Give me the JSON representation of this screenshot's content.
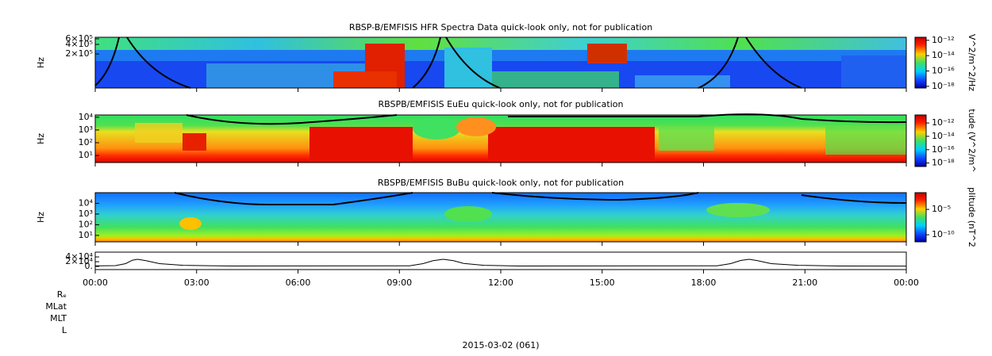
{
  "chart_data": [
    {
      "type": "spectrogram",
      "title": "RBSP-B/EMFISIS  HFR Spectra Data quick-look only, not for publication",
      "ylabel": "Hz",
      "ylog": true,
      "ylim": [
        17000,
        670000
      ],
      "yticks": [
        {
          "value": 200000,
          "label": "2×10⁵"
        },
        {
          "value": 400000,
          "label": "4×10⁵"
        },
        {
          "value": 600000,
          "label": "6×10⁵"
        }
      ],
      "colorbar": {
        "label": "V^2/m^2/Hz",
        "log": true,
        "lim": [
          6e-19,
          2.5e-12
        ],
        "ticks": [
          {
            "value": 1e-12,
            "label": "10⁻¹²"
          },
          {
            "value": 1e-14,
            "label": "10⁻¹⁴"
          },
          {
            "value": 1e-16,
            "label": "10⁻¹⁶"
          },
          {
            "value": 1e-18,
            "label": "10⁻¹⁸"
          }
        ]
      }
    },
    {
      "type": "spectrogram",
      "title": "RBSPB/EMFISIS  EuEu quick-look only, not for publication",
      "ylabel": "Hz",
      "ylog": true,
      "ylim": [
        2.8,
        15000
      ],
      "yticks": [
        {
          "value": 10,
          "label": "10¹"
        },
        {
          "value": 100,
          "label": "10²"
        },
        {
          "value": 1000,
          "label": "10³"
        },
        {
          "value": 10000,
          "label": "10⁴"
        }
      ],
      "colorbar": {
        "label": "tude (V^2/m^",
        "log": true,
        "lim": [
          3e-19,
          1.6e-11
        ],
        "ticks": [
          {
            "value": 1e-12,
            "label": "10⁻¹²"
          },
          {
            "value": 1e-14,
            "label": "10⁻¹⁴"
          },
          {
            "value": 1e-16,
            "label": "10⁻¹⁶"
          },
          {
            "value": 1e-18,
            "label": "10⁻¹⁸"
          }
        ]
      }
    },
    {
      "type": "spectrogram",
      "title": "RBSPB/EMFISIS  BuBu quick-look only, not for publication",
      "ylabel": "Hz",
      "ylog": true,
      "ylim": [
        2.5,
        100000
      ],
      "yticks": [
        {
          "value": 10,
          "label": "10¹"
        },
        {
          "value": 100,
          "label": "10²"
        },
        {
          "value": 1000,
          "label": "10³"
        },
        {
          "value": 10000,
          "label": "10⁴"
        }
      ],
      "colorbar": {
        "label": "plitude (nT^2",
        "log": true,
        "lim": [
          4e-12,
          0.02
        ],
        "ticks": [
          {
            "value": 1e-05,
            "label": "10⁻⁵"
          },
          {
            "value": 1e-10,
            "label": "10⁻¹⁰"
          }
        ]
      }
    },
    {
      "type": "line",
      "color": "#000000",
      "ylim": [
        -13000,
        60000
      ],
      "yticks": [
        {
          "value": 0,
          "label": "0."
        },
        {
          "value": 20000,
          "label": "2×10⁴"
        },
        {
          "value": 40000,
          "label": "4×10⁴"
        }
      ],
      "x": [
        0,
        0.6,
        0.9,
        1.1,
        1.25,
        1.5,
        1.9,
        2.6,
        4,
        9.3,
        9.7,
        10.0,
        10.3,
        10.6,
        10.9,
        11.5,
        12.5,
        18.4,
        18.8,
        19.1,
        19.35,
        19.6,
        20.0,
        20.8,
        22,
        24
      ],
      "values": [
        2500,
        3500,
        12000,
        26000,
        30000,
        24000,
        12000,
        5000,
        2000,
        3000,
        12000,
        24000,
        30000,
        24000,
        13000,
        5000,
        2000,
        3000,
        12000,
        25000,
        30000,
        24000,
        12000,
        5000,
        2000,
        1500
      ],
      "xlim": [
        0,
        24
      ],
      "xticks": [
        {
          "value": 0,
          "label": "00:00"
        },
        {
          "value": 3,
          "label": "03:00"
        },
        {
          "value": 6,
          "label": "06:00"
        },
        {
          "value": 9,
          "label": "09:00"
        },
        {
          "value": 12,
          "label": "12:00"
        },
        {
          "value": 15,
          "label": "15:00"
        },
        {
          "value": 18,
          "label": "18:00"
        },
        {
          "value": 21,
          "label": "21:00"
        },
        {
          "value": 24,
          "label": "00:00"
        }
      ],
      "row_labels": [
        "Rₑ",
        "MLat",
        "MLT",
        "L"
      ],
      "xlabel": "2015-03-02 (061)"
    }
  ]
}
